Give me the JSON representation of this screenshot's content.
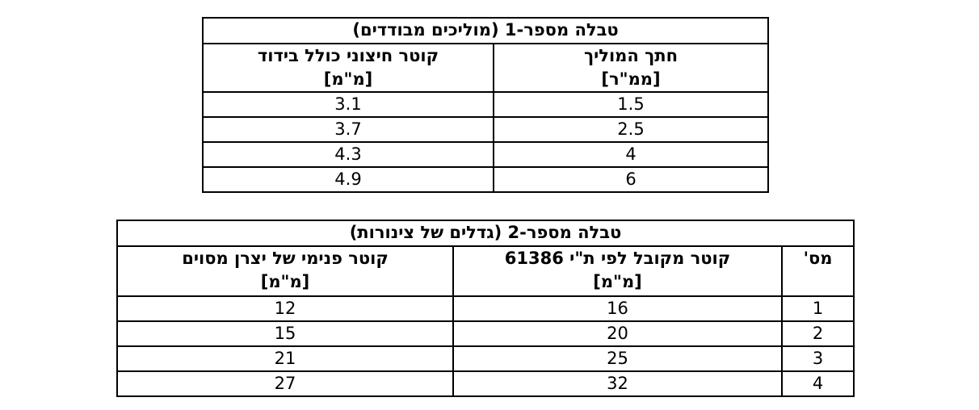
{
  "tables": [
    {
      "title": "טבלה מספר-1 (מוליכים מבודדים)",
      "headers": [
        [
          "חתך המוליך",
          "[ממ\"ר]"
        ],
        [
          "קוטר חיצוני כולל בידוד",
          "[מ\"מ]"
        ]
      ],
      "rows": [
        [
          "1.5",
          "3.1"
        ],
        [
          "2.5",
          "3.7"
        ],
        [
          "4",
          "4.3"
        ],
        [
          "6",
          "4.9"
        ]
      ]
    },
    {
      "title": "טבלה מספר-2 (גדלים של צינורות)",
      "headers": [
        [
          "מס'"
        ],
        [
          "קוטר מקובל לפי ת\"י 61386",
          "[מ\"מ]"
        ],
        [
          "קוטר פנימי של יצרן מסוים",
          "[מ\"מ]"
        ]
      ],
      "rows": [
        [
          "1",
          "16",
          "12"
        ],
        [
          "2",
          "20",
          "15"
        ],
        [
          "3",
          "25",
          "21"
        ],
        [
          "4",
          "32",
          "27"
        ]
      ]
    }
  ]
}
